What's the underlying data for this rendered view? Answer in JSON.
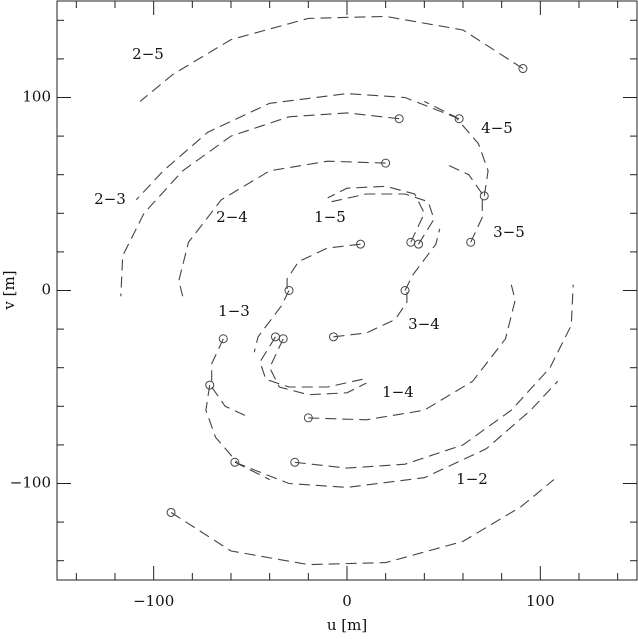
{
  "chart_data": {
    "type": "line",
    "xlabel": "u [m]",
    "ylabel": "v [m]",
    "xlim": [
      -150,
      150
    ],
    "ylim": [
      -150,
      150
    ],
    "xticks": [
      {
        "value": -100,
        "label": "−100"
      },
      0,
      100
    ],
    "yticks": [
      {
        "value": -100,
        "label": "−100"
      },
      0,
      100
    ],
    "xminorticks": [
      -140,
      -120,
      -80,
      -60,
      -40,
      -20,
      20,
      40,
      60,
      80,
      120,
      140
    ],
    "yminorticks": [
      -140,
      -120,
      -80,
      -60,
      -40,
      -20,
      20,
      40,
      60,
      80,
      120,
      140
    ],
    "color": "#444",
    "annotations": [
      "2−5",
      "2−3",
      "2−4",
      "1−5",
      "4−5",
      "3−5",
      "1−3",
      "3−4",
      "1−4",
      "1−2"
    ],
    "series": [
      {
        "x": [
          91,
          60,
          20,
          -20,
          -60,
          -90,
          -107
        ],
        "y": [
          115,
          135,
          142,
          141,
          130,
          112,
          98
        ]
      },
      {
        "x": [
          -91,
          -60,
          -20,
          20,
          60,
          90,
          107
        ],
        "y": [
          -115,
          -135,
          -142,
          -141,
          -130,
          -112,
          -98
        ]
      },
      {
        "x": [
          27,
          0,
          -30,
          -60,
          -85,
          -105,
          -116,
          -117
        ],
        "y": [
          89,
          92,
          90,
          80,
          62,
          40,
          18,
          -3
        ]
      },
      {
        "x": [
          -27,
          0,
          30,
          60,
          85,
          105,
          116,
          117
        ],
        "y": [
          -89,
          -92,
          -90,
          -80,
          -62,
          -40,
          -18,
          3
        ]
      },
      {
        "x": [
          58,
          30,
          0,
          -40,
          -72,
          -95,
          -109
        ],
        "y": [
          89,
          100,
          102,
          97,
          82,
          62,
          47
        ]
      },
      {
        "x": [
          -58,
          -30,
          0,
          40,
          72,
          95,
          109
        ],
        "y": [
          -89,
          -100,
          -102,
          -97,
          -82,
          -62,
          -47
        ]
      },
      {
        "x": [
          71,
          73,
          68,
          56,
          40
        ],
        "y": [
          49,
          62,
          76,
          90,
          98
        ]
      },
      {
        "x": [
          -71,
          -73,
          -68,
          -56,
          -40
        ],
        "y": [
          -49,
          -62,
          -76,
          -90,
          -98
        ]
      },
      {
        "x": [
          20,
          -10,
          -40,
          -65,
          -82,
          -87,
          -85
        ],
        "y": [
          66,
          67,
          62,
          47,
          25,
          5,
          -3
        ]
      },
      {
        "x": [
          -20,
          10,
          40,
          65,
          82,
          87,
          85
        ],
        "y": [
          -66,
          -67,
          -62,
          -47,
          -25,
          -5,
          3
        ]
      },
      {
        "x": [
          64,
          70,
          70,
          63,
          50
        ],
        "y": [
          25,
          38,
          50,
          60,
          66
        ]
      },
      {
        "x": [
          -64,
          -70,
          -70,
          -63,
          -50
        ],
        "y": [
          -25,
          -38,
          -50,
          -60,
          -66
        ]
      },
      {
        "x": [
          7,
          -10,
          -25,
          -31,
          -31
        ],
        "y": [
          24,
          22,
          15,
          6,
          -2
        ]
      },
      {
        "x": [
          -7,
          10,
          25,
          31,
          31
        ],
        "y": [
          -24,
          -22,
          -15,
          -6,
          2
        ]
      },
      {
        "x": [
          33,
          40,
          35,
          20,
          0,
          -10
        ],
        "y": [
          25,
          40,
          50,
          54,
          53,
          48
        ]
      },
      {
        "x": [
          -33,
          -40,
          -35,
          -20,
          0,
          10
        ],
        "y": [
          -25,
          -40,
          -50,
          -54,
          -53,
          -48
        ]
      },
      {
        "x": [
          37,
          45,
          42,
          30,
          10,
          -8
        ],
        "y": [
          24,
          37,
          46,
          50,
          50,
          46
        ]
      },
      {
        "x": [
          -37,
          -45,
          -42,
          -30,
          -10,
          8
        ],
        "y": [
          -24,
          -37,
          -46,
          -50,
          -50,
          -46
        ]
      },
      {
        "x": [
          30,
          34,
          40,
          46,
          48
        ],
        "y": [
          0,
          8,
          16,
          24,
          32
        ]
      },
      {
        "x": [
          -30,
          -34,
          -40,
          -46,
          -48
        ],
        "y": [
          0,
          -8,
          -16,
          -24,
          -32
        ]
      }
    ]
  }
}
